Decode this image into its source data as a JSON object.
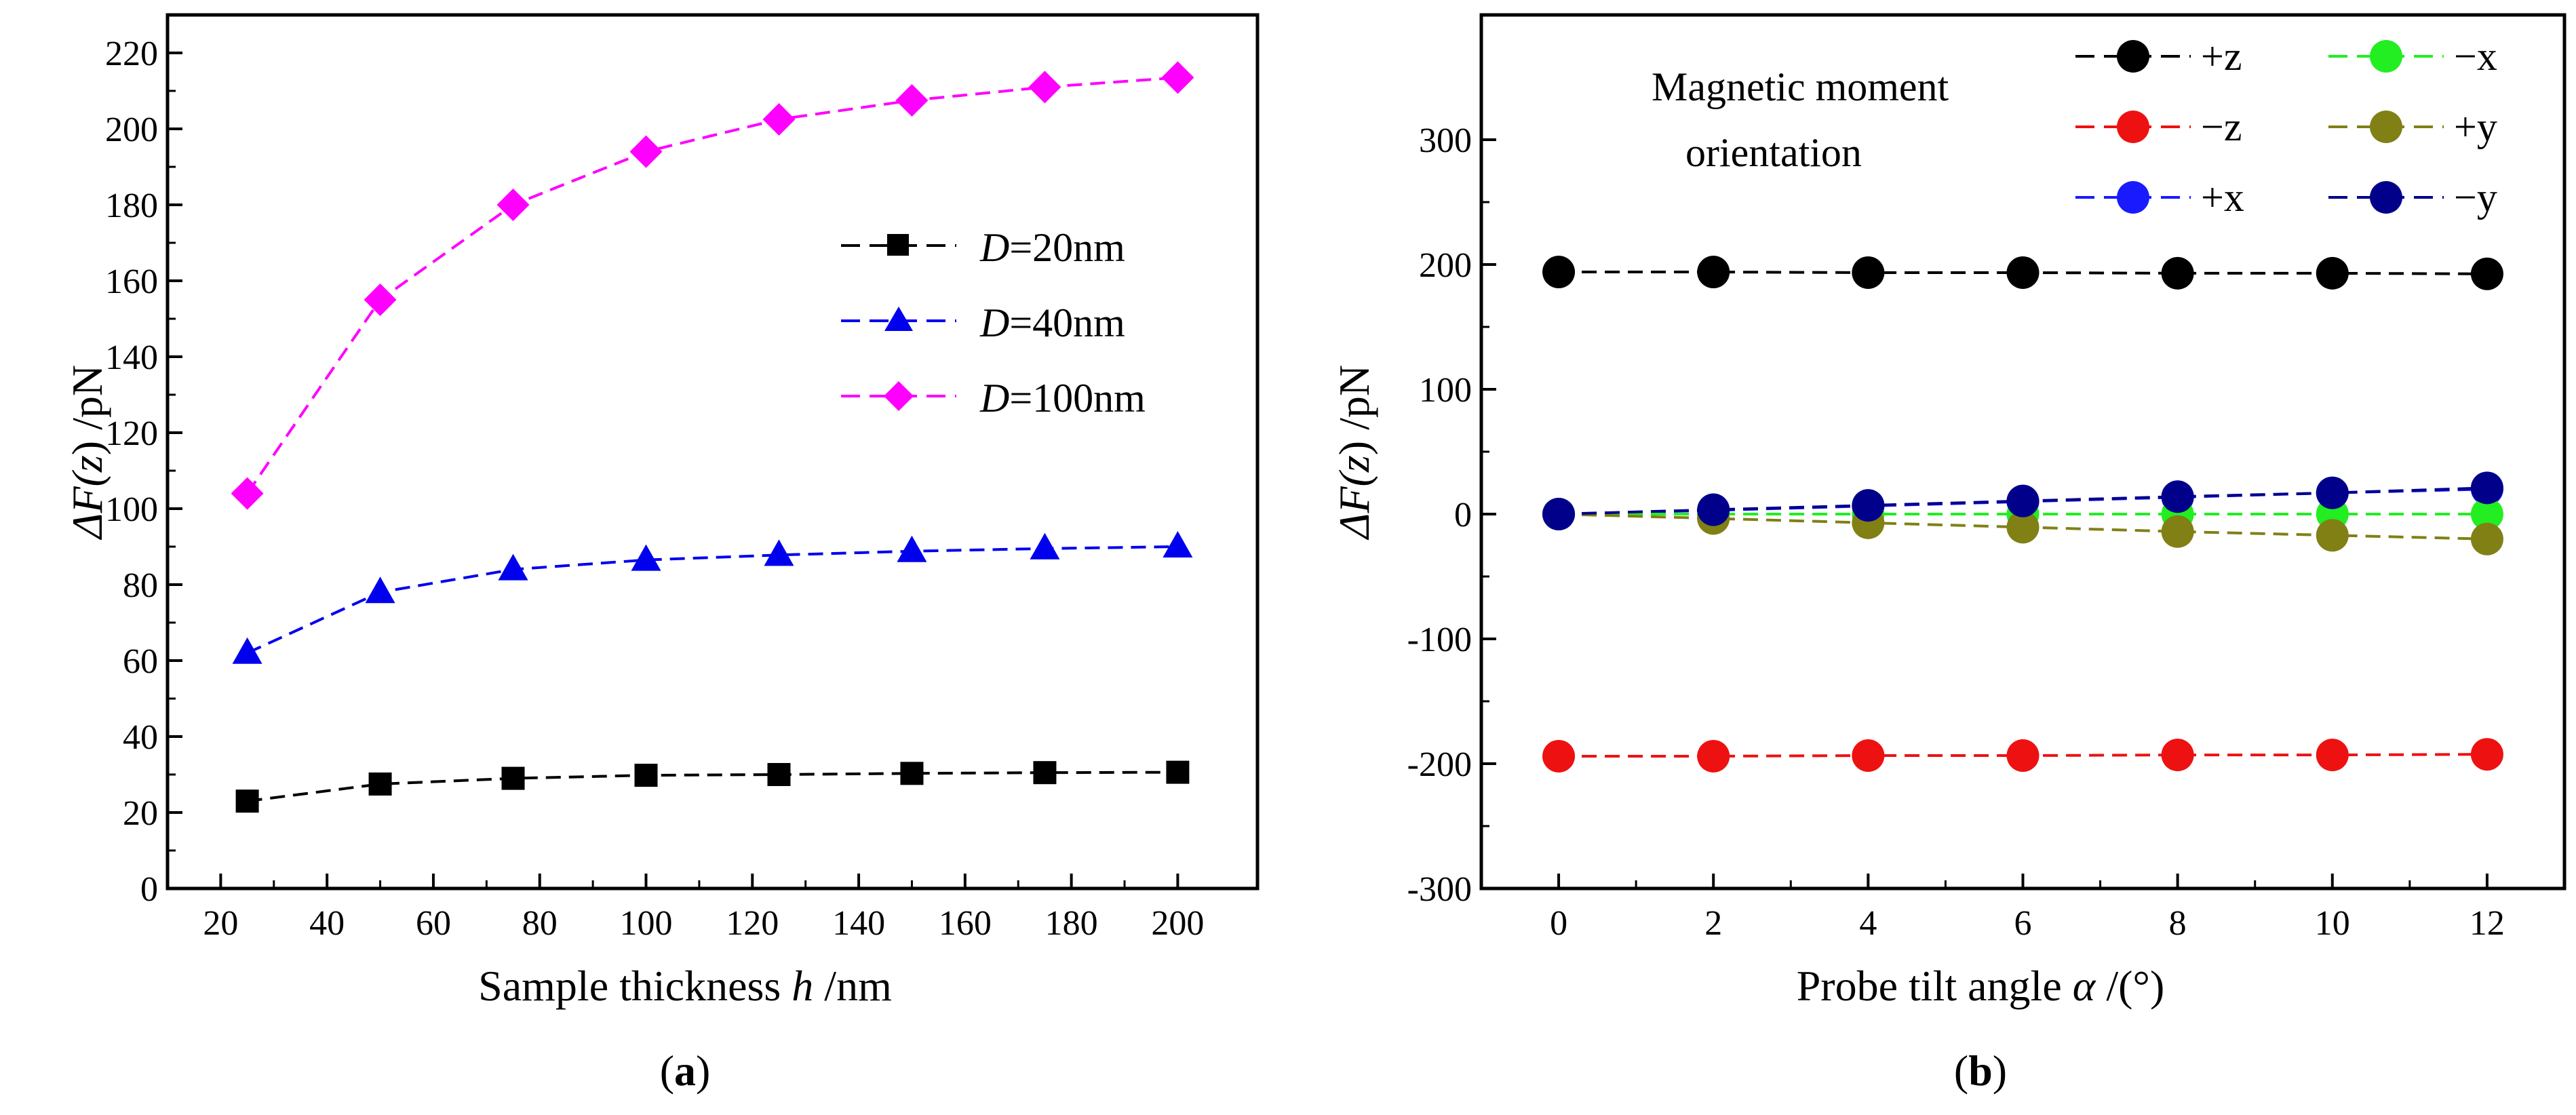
{
  "chart_data": [
    {
      "id": "a",
      "type": "line",
      "panel_label": "a",
      "xlabel_prefix": "Sample thickness ",
      "xlabel_var": "h",
      "xlabel_suffix": " /nm",
      "ylabel_prefix": "ΔF(",
      "ylabel_var": "z",
      "ylabel_suffix": ") /pN",
      "xlim": [
        10,
        215
      ],
      "ylim": [
        0,
        230
      ],
      "xticks": [
        20,
        40,
        60,
        80,
        100,
        120,
        140,
        160,
        180,
        200
      ],
      "yticks": [
        0,
        20,
        40,
        60,
        80,
        100,
        120,
        140,
        160,
        180,
        200,
        220
      ],
      "x": [
        25,
        50,
        75,
        100,
        125,
        150,
        175,
        200
      ],
      "legend_position": "middle-right",
      "series": [
        {
          "name": "D=20nm",
          "name_var": "D",
          "name_rest": "=20nm",
          "color": "#000000",
          "marker": "square",
          "values": [
            23,
            27.5,
            29,
            29.8,
            30,
            30.3,
            30.5,
            30.6
          ]
        },
        {
          "name": "D=40nm",
          "name_var": "D",
          "name_rest": "=40nm",
          "color": "#0000ee",
          "marker": "triangle",
          "values": [
            62,
            78,
            84,
            86.5,
            87.8,
            88.8,
            89.5,
            90
          ]
        },
        {
          "name": "D=100nm",
          "name_var": "D",
          "name_rest": "=100nm",
          "color": "#ff00ff",
          "marker": "diamond",
          "values": [
            104,
            155,
            180,
            194,
            202.5,
            207.5,
            211,
            213.5
          ]
        }
      ]
    },
    {
      "id": "b",
      "type": "line",
      "panel_label": "b",
      "xlabel_prefix": "Probe tilt angle ",
      "xlabel_var": "α",
      "xlabel_suffix": " /(°)",
      "ylabel_prefix": "ΔF(",
      "ylabel_var": "z",
      "ylabel_suffix": ") /pN",
      "xlim": [
        -1,
        13
      ],
      "ylim": [
        -300,
        400
      ],
      "xticks": [
        0,
        2,
        4,
        6,
        8,
        10,
        12
      ],
      "yticks": [
        -300,
        -200,
        -100,
        0,
        100,
        200,
        300
      ],
      "x": [
        0,
        2,
        4,
        6,
        8,
        10,
        12
      ],
      "legend_title_line1": "Magnetic moment",
      "legend_title_line2": "orientation",
      "legend_position": "top-right",
      "series": [
        {
          "name": "+z",
          "color": "#000000",
          "marker": "circle",
          "values": [
            194,
            194,
            193.5,
            193.5,
            193,
            193,
            192.5
          ]
        },
        {
          "name": "−z",
          "color": "#ee1111",
          "marker": "circle",
          "values": [
            -194,
            -194,
            -193.5,
            -193.5,
            -193,
            -193,
            -192.5
          ]
        },
        {
          "name": "+x",
          "color": "#1a1aff",
          "marker": "circle",
          "values": [
            0,
            3,
            6.5,
            10,
            13.5,
            17,
            20
          ]
        },
        {
          "name": "−x",
          "color": "#22ee22",
          "marker": "circle",
          "values": [
            0,
            0,
            0,
            0,
            0,
            0,
            0
          ]
        },
        {
          "name": "+y",
          "color": "#808015",
          "marker": "circle",
          "values": [
            0,
            -3.5,
            -7,
            -10.5,
            -14,
            -17,
            -20
          ]
        },
        {
          "name": "−y",
          "color": "#00008b",
          "marker": "circle",
          "values": [
            0,
            3.5,
            7,
            10.5,
            14,
            17,
            21
          ]
        }
      ]
    }
  ]
}
